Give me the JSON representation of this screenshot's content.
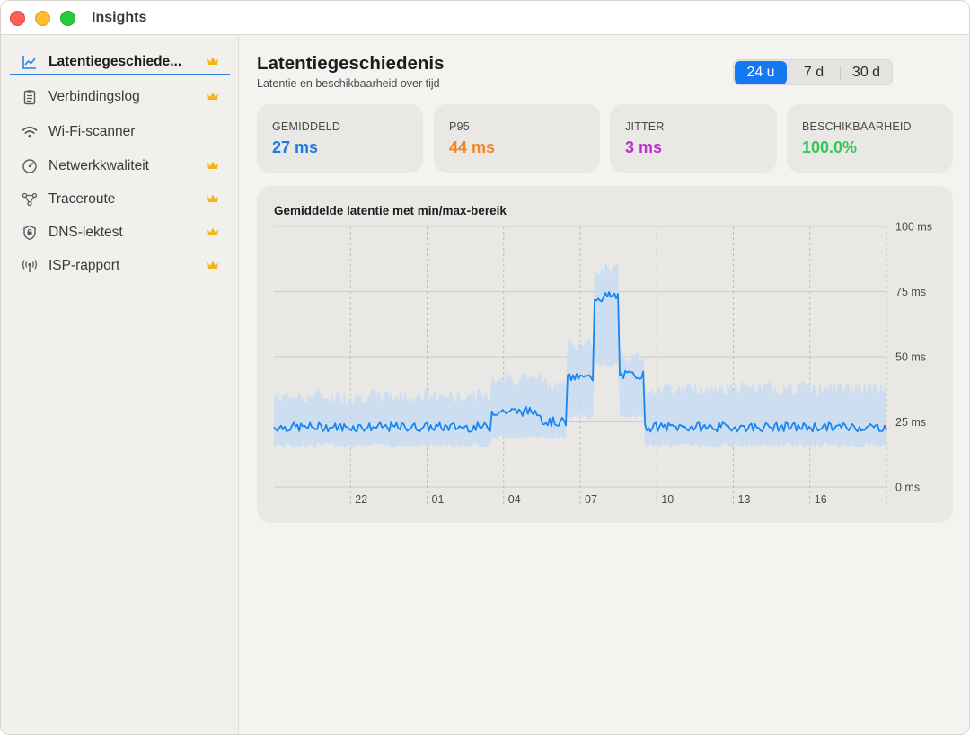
{
  "window": {
    "title": "Insights"
  },
  "sidebar": {
    "items": [
      {
        "label": "Latentiegeschiede...",
        "icon": "line-chart-icon",
        "premium": true,
        "active": true
      },
      {
        "label": "Verbindingslog",
        "icon": "clipboard-list-icon",
        "premium": true,
        "active": false
      },
      {
        "label": "Wi-Fi-scanner",
        "icon": "wifi-icon",
        "premium": false,
        "active": false
      },
      {
        "label": "Netwerkkwaliteit",
        "icon": "speedometer-icon",
        "premium": true,
        "active": false
      },
      {
        "label": "Traceroute",
        "icon": "network-nodes-icon",
        "premium": true,
        "active": false
      },
      {
        "label": "DNS-lektest",
        "icon": "shield-icon",
        "premium": true,
        "active": false
      },
      {
        "label": "ISP-rapport",
        "icon": "antenna-icon",
        "premium": true,
        "active": false
      }
    ]
  },
  "header": {
    "title": "Latentiegeschiedenis",
    "subtitle": "Latentie en beschikbaarheid over tijd"
  },
  "range": {
    "options": [
      "24 u",
      "7 d",
      "30 d"
    ],
    "selected": "24 u",
    "accent": "#1478f0"
  },
  "stats": [
    {
      "label": "GEMIDDELD",
      "value": "27 ms",
      "color": "#1d7be6"
    },
    {
      "label": "P95",
      "value": "44 ms",
      "color": "#f0882a"
    },
    {
      "label": "JITTER",
      "value": "3 ms",
      "color": "#c22fd0"
    },
    {
      "label": "BESCHIKBAARHEID",
      "value": "100.0%",
      "color": "#34c759"
    }
  ],
  "chart_data": {
    "type": "line",
    "title": "Gemiddelde latentie met min/max-bereik",
    "xlabel": "",
    "ylabel": "",
    "x_ticks": [
      "22",
      "01",
      "04",
      "07",
      "10",
      "13",
      "16"
    ],
    "y_ticks": [
      "100 ms",
      "75 ms",
      "50 ms",
      "25 ms",
      "0 ms"
    ],
    "ylim": [
      0,
      100
    ],
    "grid": true,
    "line_color": "#1a85f0",
    "band_color": "#c9dcf3",
    "series": [
      {
        "segments": [
          {
            "from_hour": 19.0,
            "to_hour": 27.5,
            "avg": 23,
            "min": 16,
            "max": 35
          },
          {
            "from_hour": 27.5,
            "to_hour": 29.5,
            "avg": 29,
            "min": 19,
            "max": 42
          },
          {
            "from_hour": 29.5,
            "to_hour": 30.5,
            "avg": 25,
            "min": 19,
            "max": 40
          },
          {
            "from_hour": 30.5,
            "to_hour": 31.5,
            "avg": 42,
            "min": 27,
            "max": 55
          },
          {
            "from_hour": 31.5,
            "to_hour": 32.5,
            "avg": 73,
            "min": 47,
            "max": 84
          },
          {
            "from_hour": 32.5,
            "to_hour": 33.5,
            "avg": 43,
            "min": 27,
            "max": 50
          },
          {
            "from_hour": 33.5,
            "to_hour": 43.0,
            "avg": 23,
            "min": 16,
            "max": 38
          }
        ]
      }
    ]
  }
}
